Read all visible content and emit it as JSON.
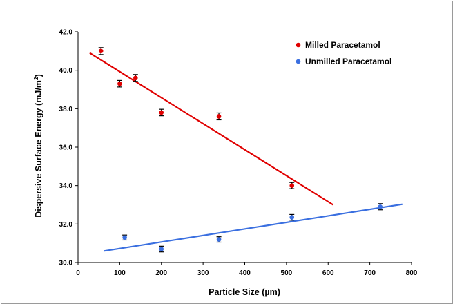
{
  "chart_data": {
    "type": "scatter",
    "xlabel": "Particle Size (µm)",
    "ylabel_main": "Dispersive Surface Energy (mJ/m",
    "ylabel_sup": "2",
    "ylabel_tail": ")",
    "xlim": [
      0,
      800
    ],
    "ylim": [
      30.0,
      42.0
    ],
    "x_ticks": [
      0,
      100,
      200,
      300,
      400,
      500,
      600,
      700,
      800
    ],
    "x_tick_labels": [
      "0",
      "100",
      "200",
      "300",
      "400",
      "500",
      "600",
      "700",
      "800"
    ],
    "y_ticks": [
      30,
      32,
      34,
      36,
      38,
      40,
      42
    ],
    "y_tick_labels": [
      "30.0",
      "32.0",
      "34.0",
      "36.0",
      "38.0",
      "40.0",
      "42.0"
    ],
    "grid": false,
    "legend_position": "top-right",
    "series": [
      {
        "name": "Milled Paracetamol",
        "color": "#e00000",
        "points": [
          {
            "x": 55,
            "y": 41.0,
            "err": 0.18
          },
          {
            "x": 100,
            "y": 39.3,
            "err": 0.17
          },
          {
            "x": 138,
            "y": 39.6,
            "err": 0.18
          },
          {
            "x": 200,
            "y": 37.8,
            "err": 0.17
          },
          {
            "x": 338,
            "y": 37.6,
            "err": 0.18
          },
          {
            "x": 513,
            "y": 34.0,
            "err": 0.16
          }
        ],
        "trendline": {
          "x1": 28,
          "y1": 40.9,
          "x2": 612,
          "y2": 33.0
        }
      },
      {
        "name": "Unmilled Paracetamol",
        "color": "#3a6fe0",
        "points": [
          {
            "x": 112,
            "y": 31.3,
            "err": 0.13
          },
          {
            "x": 200,
            "y": 30.7,
            "err": 0.15
          },
          {
            "x": 338,
            "y": 31.2,
            "err": 0.14
          },
          {
            "x": 513,
            "y": 32.35,
            "err": 0.15
          },
          {
            "x": 725,
            "y": 32.9,
            "err": 0.16
          }
        ],
        "trendline": {
          "x1": 62,
          "y1": 30.6,
          "x2": 778,
          "y2": 33.03
        }
      }
    ]
  }
}
